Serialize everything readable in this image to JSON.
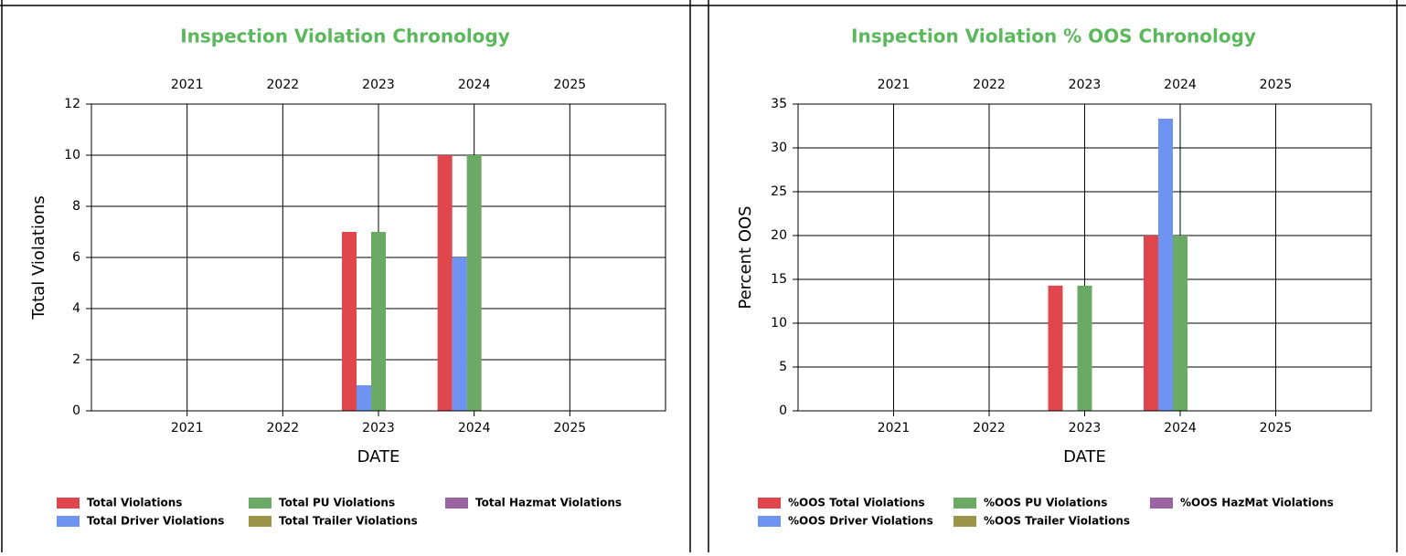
{
  "chart_data": [
    {
      "type": "bar",
      "title": "Inspection Violation Chronology",
      "x_label": "DATE",
      "y_label": "Total Violations",
      "categories": [
        "2021",
        "2022",
        "2023",
        "2024",
        "2025"
      ],
      "series": [
        {
          "name": "Total Violations",
          "color": "#e0474c",
          "values": [
            0,
            0,
            7,
            10,
            0
          ]
        },
        {
          "name": "Total Driver Violations",
          "color": "#6f93f0",
          "values": [
            0,
            0,
            1,
            6,
            0
          ]
        },
        {
          "name": "Total PU Violations",
          "color": "#6aaa64",
          "values": [
            0,
            0,
            7,
            10,
            0
          ]
        },
        {
          "name": "Total Trailer Violations",
          "color": "#9c9448",
          "values": [
            0,
            0,
            0,
            0,
            0
          ]
        },
        {
          "name": "Total Hazmat Violations",
          "color": "#9a64a0",
          "values": [
            0,
            0,
            0,
            0,
            0
          ]
        }
      ],
      "ylim": [
        0,
        12
      ],
      "yticks": [
        0,
        2,
        4,
        6,
        8,
        10,
        12
      ],
      "grid": true
    },
    {
      "type": "bar",
      "title": "Inspection Violation % OOS Chronology",
      "x_label": "DATE",
      "y_label": "Percent OOS",
      "categories": [
        "2021",
        "2022",
        "2023",
        "2024",
        "2025"
      ],
      "series": [
        {
          "name": "%OOS Total Violations",
          "color": "#e0474c",
          "values": [
            0,
            0,
            14.29,
            20,
            0
          ]
        },
        {
          "name": "%OOS Driver Violations",
          "color": "#6f93f0",
          "values": [
            0,
            0,
            0,
            33.33,
            0
          ]
        },
        {
          "name": "%OOS PU Violations",
          "color": "#6aaa64",
          "values": [
            0,
            0,
            14.29,
            20,
            0
          ]
        },
        {
          "name": "%OOS Trailer Violations",
          "color": "#9c9448",
          "values": [
            0,
            0,
            0,
            0,
            0
          ]
        },
        {
          "name": "%OOS HazMat Violations",
          "color": "#9a64a0",
          "values": [
            0,
            0,
            0,
            0,
            0
          ]
        }
      ],
      "ylim": [
        0,
        35
      ],
      "yticks": [
        0,
        5,
        10,
        15,
        20,
        25,
        30,
        35
      ],
      "grid": true
    }
  ]
}
